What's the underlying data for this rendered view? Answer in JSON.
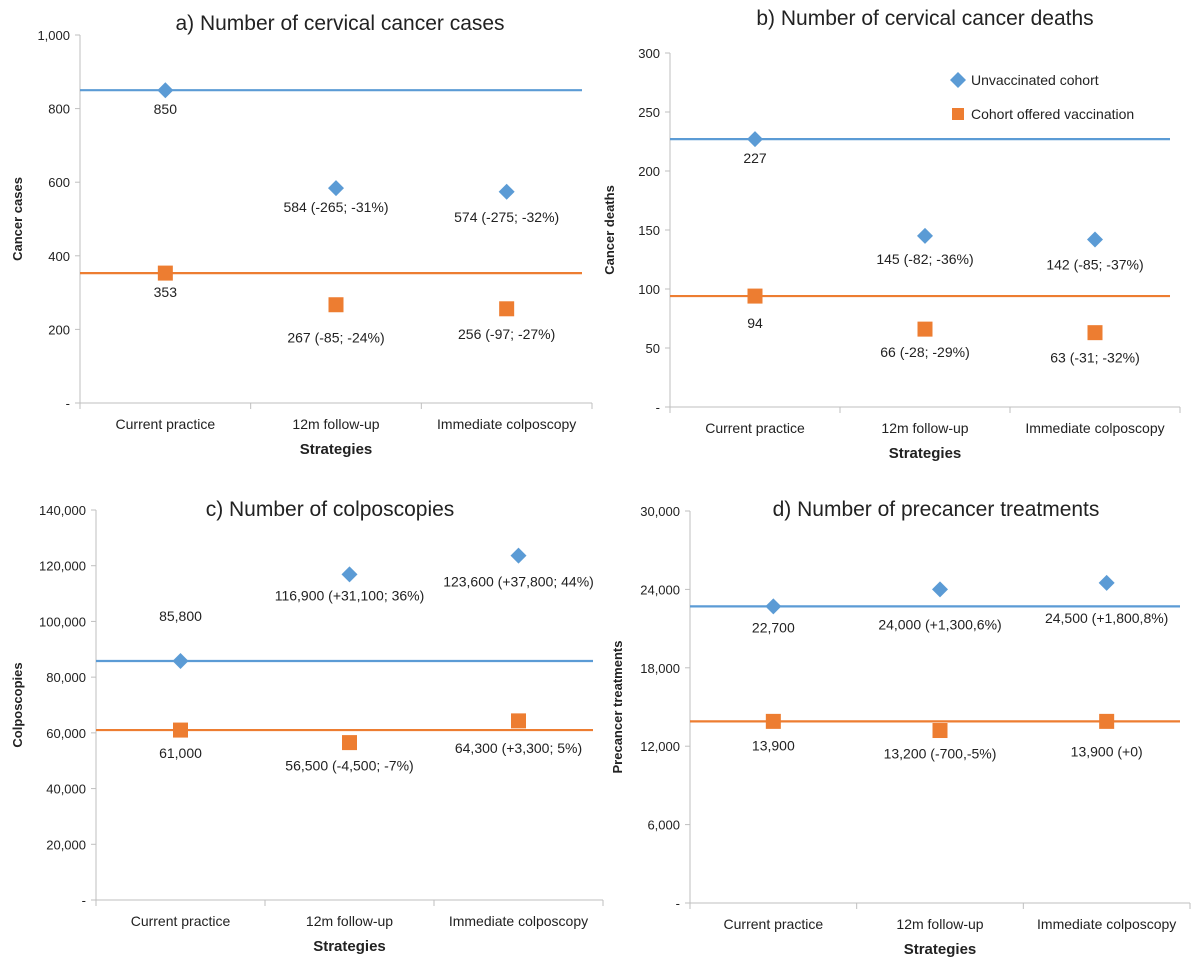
{
  "colors": {
    "unvaccinated": "#5B9BD5",
    "vaccinated": "#ED7D31",
    "axis": "#BFBFBF",
    "text": "#222222"
  },
  "legend": {
    "unvaccinated": "Unvaccinated cohort",
    "vaccinated": "Cohort offered vaccination",
    "shape_unvaccinated": "diamond",
    "shape_vaccinated": "square"
  },
  "chart_data": [
    {
      "type": "scatter",
      "title": "a) Number of cervical cancer cases",
      "xlabel": "Strategies",
      "ylabel": "Cancer cases",
      "categories": [
        "Current practice",
        "12m follow-up",
        "Immediate colposcopy"
      ],
      "ylim": [
        0,
        1000
      ],
      "yticks": [
        "-",
        "200",
        "400",
        "600",
        "800",
        "1,000"
      ],
      "grid": false,
      "legend": false,
      "series": [
        {
          "name": "Unvaccinated cohort",
          "values": [
            850,
            584,
            574
          ],
          "labels": [
            "850",
            "584 (-265; -31%)",
            "574 (-275; -32%)"
          ],
          "reference_line": 850
        },
        {
          "name": "Cohort offered vaccination",
          "values": [
            353,
            267,
            256
          ],
          "labels": [
            "353",
            "267 (-85; -24%)",
            "256 (-97; -27%)"
          ],
          "reference_line": 353
        }
      ]
    },
    {
      "type": "scatter",
      "title": "b) Number of cervical cancer deaths",
      "xlabel": "Strategies",
      "ylabel": "Cancer deaths",
      "categories": [
        "Current practice",
        "12m follow-up",
        "Immediate colposcopy"
      ],
      "ylim": [
        0,
        300
      ],
      "yticks": [
        "-",
        "50",
        "100",
        "150",
        "200",
        "250",
        "300"
      ],
      "grid": false,
      "legend": true,
      "legend_position": "top-right",
      "series": [
        {
          "name": "Unvaccinated cohort",
          "values": [
            227,
            145,
            142
          ],
          "labels": [
            "227",
            "145 (-82; -36%)",
            "142 (-85; -37%)"
          ],
          "reference_line": 227
        },
        {
          "name": "Cohort offered vaccination",
          "values": [
            94,
            66,
            63
          ],
          "labels": [
            "94",
            "66 (-28; -29%)",
            "63 (-31; -32%)"
          ],
          "reference_line": 94
        }
      ]
    },
    {
      "type": "scatter",
      "title": "c) Number of colposcopies",
      "xlabel": "Strategies",
      "ylabel": "Colposcopies",
      "categories": [
        "Current practice",
        "12m follow-up",
        "Immediate colposcopy"
      ],
      "ylim": [
        0,
        140000
      ],
      "yticks": [
        "-",
        "20,000",
        "40,000",
        "60,000",
        "80,000",
        "100,000",
        "120,000",
        "140,000"
      ],
      "grid": false,
      "legend": false,
      "series": [
        {
          "name": "Unvaccinated cohort",
          "values": [
            85800,
            116900,
            123600
          ],
          "labels": [
            "85,800",
            "116,900 (+31,100; 36%)",
            "123,600 (+37,800; 44%)"
          ],
          "reference_line": 85800
        },
        {
          "name": "Cohort offered vaccination",
          "values": [
            61000,
            56500,
            64300
          ],
          "labels": [
            "61,000",
            "56,500 (-4,500; -7%)",
            "64,300 (+3,300; 5%)"
          ],
          "reference_line": 61000
        }
      ]
    },
    {
      "type": "scatter",
      "title": "d) Number of precancer treatments",
      "xlabel": "Strategies",
      "ylabel": "Precancer treatments",
      "categories": [
        "Current practice",
        "12m follow-up",
        "Immediate colposcopy"
      ],
      "ylim": [
        0,
        30000
      ],
      "yticks": [
        "-",
        "6,000",
        "12,000",
        "18,000",
        "24,000",
        "30,000"
      ],
      "grid": false,
      "legend": false,
      "series": [
        {
          "name": "Unvaccinated cohort",
          "values": [
            22700,
            24000,
            24500
          ],
          "labels": [
            "22,700",
            "24,000 (+1,300,6%)",
            "24,500 (+1,800,8%)"
          ],
          "reference_line": 22700
        },
        {
          "name": "Cohort offered vaccination",
          "values": [
            13900,
            13200,
            13900
          ],
          "labels": [
            "13,900",
            "13,200 (-700,-5%)",
            "13,900 (+0)"
          ],
          "reference_line": 13900
        }
      ]
    }
  ]
}
